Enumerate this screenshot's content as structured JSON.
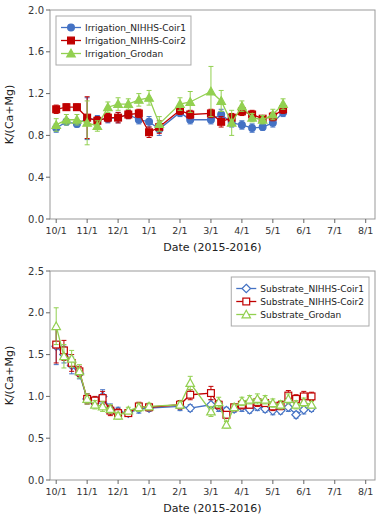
{
  "chart_data": [
    {
      "type": "line",
      "x_label": "Date (2015-2016)",
      "y_label": "K/(Ca+Mg)",
      "x": [
        0,
        0.33,
        0.67,
        1.0,
        1.33,
        1.67,
        2.0,
        2.33,
        2.67,
        3.0,
        3.33,
        4.0,
        4.33,
        5.0,
        5.33,
        5.67,
        6.0,
        6.33,
        6.67,
        7.0,
        7.33
      ],
      "xlim": [
        -0.2,
        10.3
      ],
      "xticks": [
        {
          "value": 0,
          "label": "10/1"
        },
        {
          "value": 1,
          "label": "11/1"
        },
        {
          "value": 2,
          "label": "12/1"
        },
        {
          "value": 3,
          "label": "1/1"
        },
        {
          "value": 4,
          "label": "2/1"
        },
        {
          "value": 5,
          "label": "3/1"
        },
        {
          "value": 6,
          "label": "4/1"
        },
        {
          "value": 7,
          "label": "5/1"
        },
        {
          "value": 8,
          "label": "6/1"
        },
        {
          "value": 9,
          "label": "7/1"
        },
        {
          "value": 10,
          "label": "8/1"
        }
      ],
      "ylim": [
        0.0,
        2.0
      ],
      "yticks": [
        {
          "value": 0.0,
          "label": "0.0"
        },
        0.4,
        0.8,
        1.2,
        1.6,
        {
          "value": 2.0,
          "label": "2.0"
        }
      ],
      "grid": false,
      "legend": "upper left",
      "series": [
        {
          "name": "Irrigation_NIHHS-Coir1",
          "color": "#4472C4",
          "marker": "circle",
          "values": [
            0.87,
            0.93,
            0.91,
            0.96,
            0.95,
            0.96,
            0.97,
            1.0,
            0.95,
            0.93,
            0.86,
            1.02,
            0.95,
            0.95,
            1.0,
            0.92,
            0.9,
            0.87,
            0.88,
            0.92,
            1.02
          ],
          "errors": [
            0.04,
            0.03,
            0.03,
            0.2,
            0.04,
            0.04,
            0.05,
            0.04,
            0.04,
            0.05,
            0.06,
            0.04,
            0.04,
            0.04,
            0.05,
            0.04,
            0.04,
            0.04,
            0.03,
            0.04,
            0.04
          ]
        },
        {
          "name": "Irrigation_NIHHS-Coir2",
          "color": "#C00000",
          "marker": "square",
          "values": [
            1.05,
            1.07,
            1.07,
            0.97,
            0.94,
            0.97,
            0.97,
            1.0,
            1.01,
            0.83,
            0.88,
            1.04,
            1.0,
            1.01,
            0.93,
            0.97,
            1.03,
            1.0,
            0.96,
            0.98,
            1.05
          ],
          "errors": [
            0.04,
            0.03,
            0.03,
            0.2,
            0.04,
            0.04,
            0.05,
            0.04,
            0.04,
            0.05,
            0.06,
            0.04,
            0.04,
            0.04,
            0.05,
            0.04,
            0.04,
            0.04,
            0.03,
            0.04,
            0.04
          ]
        },
        {
          "name": "Irrigation_Grodan",
          "color": "#92D050",
          "marker": "triangle",
          "values": [
            0.9,
            0.95,
            0.95,
            0.92,
            0.89,
            1.07,
            1.1,
            1.1,
            1.14,
            1.16,
            0.91,
            1.1,
            1.12,
            1.22,
            1.13,
            0.92,
            1.08,
            0.97,
            0.95,
            1.0,
            1.1
          ],
          "errors": [
            0.06,
            0.05,
            0.05,
            0.21,
            0.05,
            0.05,
            0.06,
            0.05,
            0.06,
            0.07,
            0.07,
            0.06,
            0.1,
            0.24,
            0.1,
            0.12,
            0.05,
            0.04,
            0.04,
            0.05,
            0.05
          ]
        }
      ]
    },
    {
      "type": "line",
      "x_label": "Date (2015-2016)",
      "y_label": "K/(Ca+Mg)",
      "x": [
        0,
        0.25,
        0.5,
        0.75,
        1.0,
        1.25,
        1.5,
        1.75,
        2.0,
        2.33,
        2.67,
        3.0,
        4.0,
        4.33,
        5.0,
        5.25,
        5.5,
        5.75,
        6.0,
        6.25,
        6.5,
        6.75,
        7.0,
        7.25,
        7.5,
        7.75,
        8.0,
        8.25
      ],
      "xlim": [
        -0.2,
        10.3
      ],
      "xticks": [
        {
          "value": 0,
          "label": "10/1"
        },
        {
          "value": 1,
          "label": "11/1"
        },
        {
          "value": 2,
          "label": "12/1"
        },
        {
          "value": 3,
          "label": "1/1"
        },
        {
          "value": 4,
          "label": "2/1"
        },
        {
          "value": 5,
          "label": "3/1"
        },
        {
          "value": 6,
          "label": "4/1"
        },
        {
          "value": 7,
          "label": "5/1"
        },
        {
          "value": 8,
          "label": "6/1"
        },
        {
          "value": 9,
          "label": "7/1"
        },
        {
          "value": 10,
          "label": "8/1"
        }
      ],
      "ylim": [
        0.0,
        2.5
      ],
      "yticks": [
        {
          "value": 0.0,
          "label": "0.0"
        },
        0.5,
        {
          "value": 1.0,
          "label": "1.0"
        },
        1.5,
        {
          "value": 2.0,
          "label": "2.0"
        },
        2.5
      ],
      "grid": false,
      "legend": "upper right",
      "series": [
        {
          "name": "Substrate_NIHHS-Coir1",
          "color": "#4472C4",
          "marker": "diamond-open",
          "values": [
            1.6,
            1.5,
            1.37,
            1.27,
            0.97,
            0.92,
            1.0,
            0.85,
            0.82,
            0.8,
            0.85,
            0.86,
            0.88,
            0.86,
            0.9,
            0.87,
            0.83,
            0.85,
            0.87,
            0.84,
            0.88,
            0.85,
            0.83,
            0.83,
            0.87,
            0.78,
            0.84,
            0.86
          ],
          "errors": [
            0.22,
            0.1,
            0.1,
            0.06,
            0.06,
            0.05,
            0.08,
            0.06,
            0.05,
            0.04,
            0.05,
            0.04,
            0.05,
            0.04,
            0.06,
            0.05,
            0.04,
            0.04,
            0.05,
            0.04,
            0.05,
            0.04,
            0.05,
            0.04,
            0.05,
            0.04,
            0.05,
            0.04
          ]
        },
        {
          "name": "Substrate_NIHHS-Coir2",
          "color": "#C00000",
          "marker": "square-open",
          "values": [
            1.62,
            1.55,
            1.4,
            1.3,
            0.97,
            0.95,
            0.98,
            0.83,
            0.8,
            0.8,
            0.88,
            0.87,
            0.9,
            1.02,
            1.04,
            0.9,
            0.78,
            0.87,
            0.9,
            0.9,
            0.93,
            0.92,
            0.88,
            0.89,
            1.01,
            0.97,
            1.0,
            1.0
          ],
          "errors": [
            0.22,
            0.12,
            0.1,
            0.06,
            0.06,
            0.05,
            0.08,
            0.06,
            0.05,
            0.04,
            0.05,
            0.04,
            0.05,
            0.06,
            0.08,
            0.05,
            0.04,
            0.04,
            0.05,
            0.04,
            0.05,
            0.04,
            0.05,
            0.05,
            0.06,
            0.05,
            0.06,
            0.05
          ]
        },
        {
          "name": "Substrate_Grodan",
          "color": "#92D050",
          "marker": "triangle-open",
          "values": [
            1.84,
            1.48,
            1.45,
            1.3,
            0.97,
            0.9,
            0.88,
            0.85,
            0.77,
            0.83,
            0.87,
            0.88,
            0.9,
            1.16,
            0.82,
            0.93,
            0.66,
            0.87,
            0.94,
            0.96,
            0.97,
            0.96,
            0.92,
            0.9,
            0.97,
            0.9,
            0.93,
            0.9
          ],
          "errors": [
            0.22,
            0.14,
            0.1,
            0.08,
            0.06,
            0.05,
            0.06,
            0.05,
            0.04,
            0.04,
            0.05,
            0.04,
            0.04,
            0.08,
            0.06,
            0.06,
            0.04,
            0.04,
            0.05,
            0.05,
            0.06,
            0.05,
            0.05,
            0.05,
            0.06,
            0.05,
            0.05,
            0.04
          ]
        }
      ]
    }
  ]
}
